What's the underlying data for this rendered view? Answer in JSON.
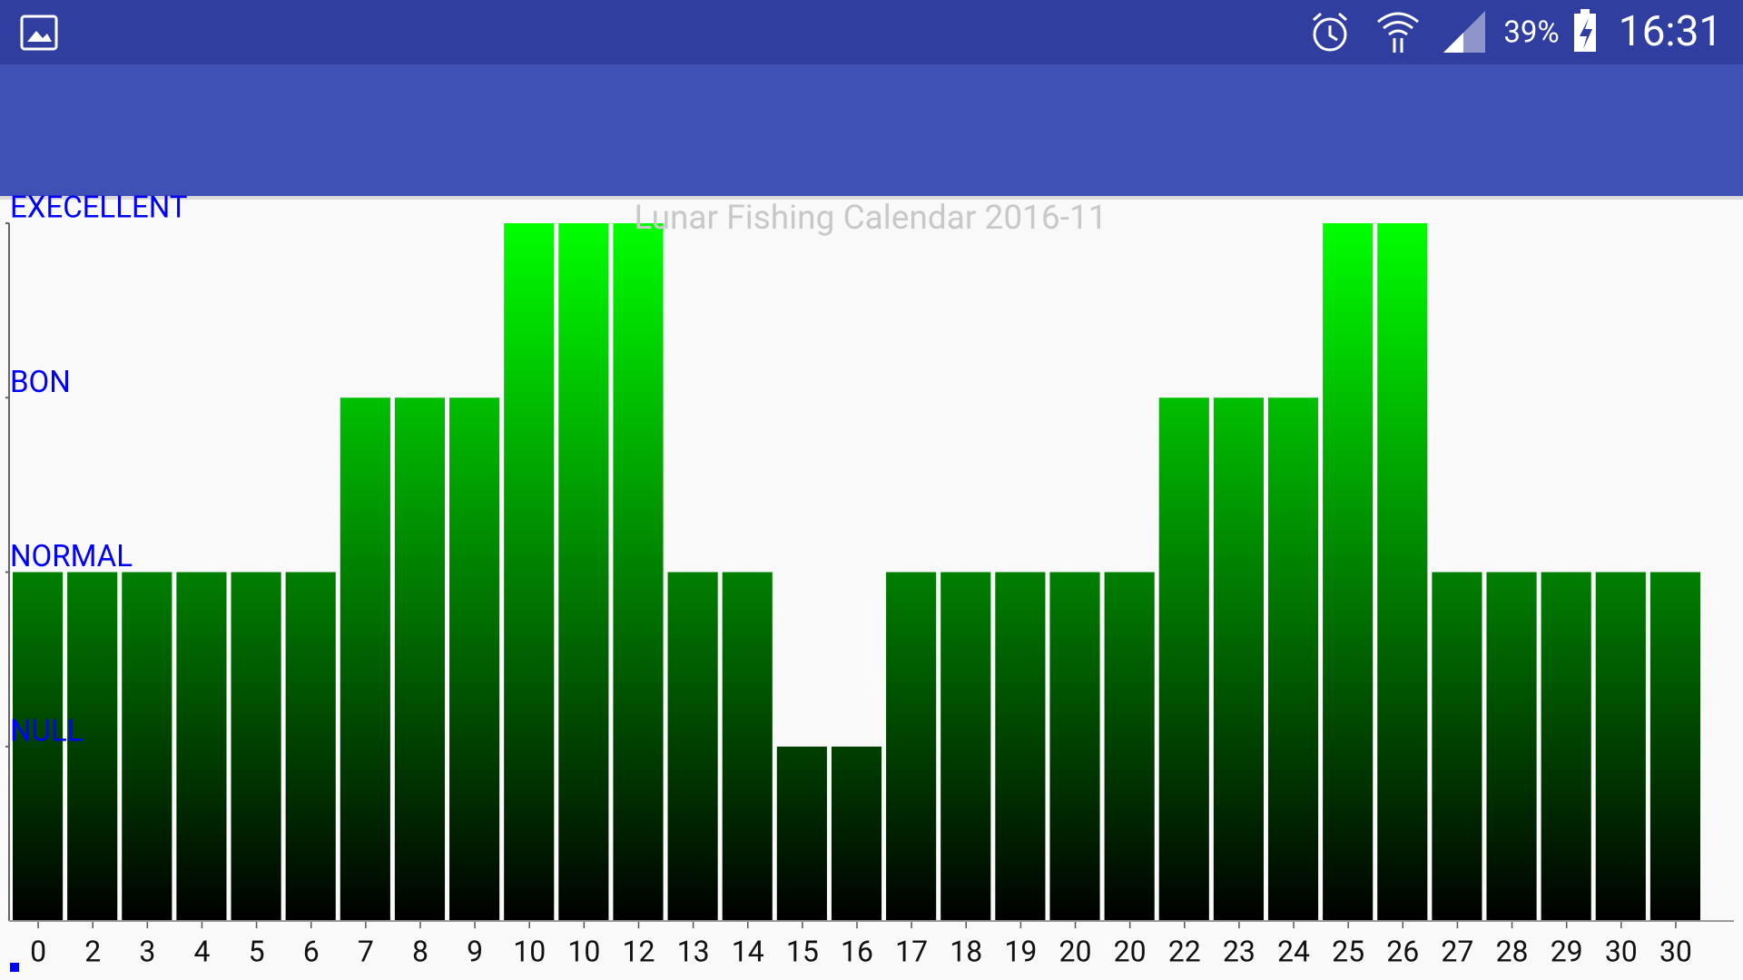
{
  "status_bar": {
    "battery": "39%",
    "time": "16:31"
  },
  "chart_data": {
    "type": "bar",
    "title": "Lunar Fishing Calendar 2016-11",
    "categories": [
      "0",
      "2",
      "3",
      "4",
      "5",
      "6",
      "7",
      "8",
      "9",
      "10",
      "10",
      "12",
      "13",
      "14",
      "15",
      "16",
      "17",
      "18",
      "19",
      "20",
      "20",
      "22",
      "23",
      "24",
      "25",
      "26",
      "27",
      "28",
      "29",
      "30",
      "30"
    ],
    "values": [
      2,
      2,
      2,
      2,
      2,
      2,
      3,
      3,
      3,
      4,
      4,
      4,
      2,
      2,
      1,
      1,
      2,
      2,
      2,
      2,
      2,
      3,
      3,
      3,
      4,
      4,
      2,
      2,
      2,
      2,
      2
    ],
    "gradient": [
      "#00ff00",
      "#000000"
    ],
    "ylim": [
      0,
      4
    ],
    "yticks": [
      {
        "value": 1,
        "label": "NULL"
      },
      {
        "value": 2,
        "label": "NORMAL"
      },
      {
        "value": 3,
        "label": "BON"
      },
      {
        "value": 4,
        "label": "EXECELLENT"
      }
    ],
    "ytick_color": "#0000ff"
  }
}
